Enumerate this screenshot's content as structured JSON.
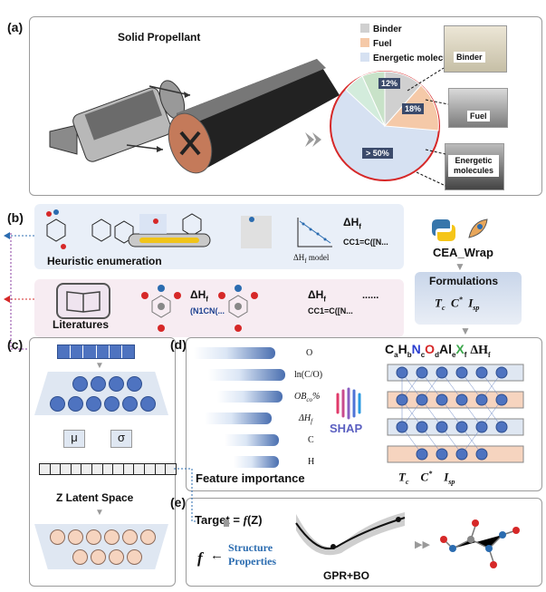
{
  "panels": {
    "a": "(a)",
    "b": "(b)",
    "c": "(c)",
    "d": "(d)",
    "e": "(e)"
  },
  "a": {
    "title": "Solid Propellant",
    "legend": [
      {
        "label": "Binder",
        "color": "#d0d0d0"
      },
      {
        "label": "Fuel",
        "color": "#f5c9a8"
      },
      {
        "label": "Energetic molecules",
        "color": "#d6e1f2"
      }
    ],
    "pie_labels": [
      "12%",
      "18%",
      "> 50%"
    ],
    "photos": [
      "Binder",
      "Fuel",
      "Energetic molecules"
    ]
  },
  "b": {
    "heuristic": "Heuristic enumeration",
    "model_label": "ΔH",
    "model_sub": "f",
    "model_suffix": " model",
    "dh": "ΔH",
    "dh_sub": "f",
    "smiles1": "CC1=C([N...",
    "literatures": "Literatures",
    "lit_smiles1": "(N1CN(...",
    "lit_smiles2": "CC1=C([N...",
    "ellipsis": "......"
  },
  "cea": {
    "title": "CEA_Wrap",
    "formulations": "Formulations",
    "tc": "T",
    "tc_sub": "c",
    "cstar": "C",
    "isp": "I",
    "isp_sub": "sp"
  },
  "c": {
    "mu": "μ",
    "sigma": "σ",
    "latent": "Z Latent Space"
  },
  "d": {
    "features": [
      "O",
      "ln(C/O)",
      "OB",
      "ΔH",
      "C",
      "H"
    ],
    "ob_sub": "co",
    "ob_suffix": "%",
    "dh_sub": "f",
    "feature_title": "Feature importance",
    "shap": "SHAP",
    "formula": "C",
    "out_tc": "T",
    "out_c": "C",
    "out_isp": "I"
  },
  "e": {
    "target": "Target = ",
    "target_f": "f",
    "target_z": "(Z)",
    "f": "f",
    "arrow": "←",
    "structure": "Structure",
    "properties": "Properties",
    "gpr": "GPR+BO"
  },
  "colors": {
    "panel_b_bg1": "#e9eff8",
    "panel_b_bg2": "#f7ecf2",
    "accent_red": "#d62828",
    "accent_blue": "#2b6cb0",
    "node_blue": "#4e73c0",
    "node_peach": "#f6d4bf"
  }
}
